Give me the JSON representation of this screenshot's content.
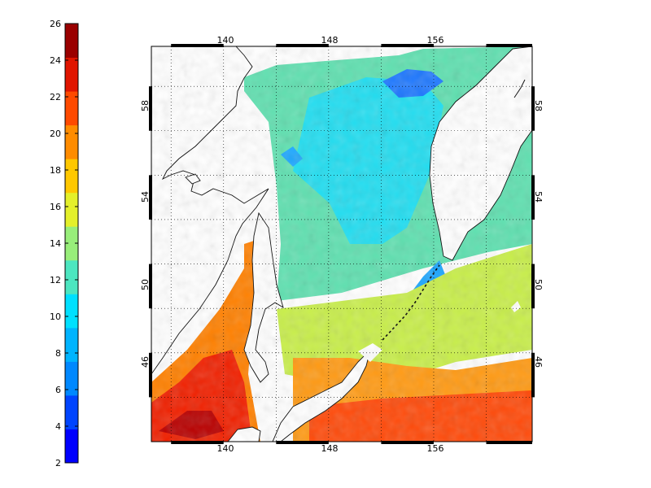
{
  "colorbar": {
    "min": 2,
    "max": 26,
    "step": 2,
    "tick_labels": [
      "2",
      "4",
      "6",
      "8",
      "10",
      "12",
      "14",
      "16",
      "18",
      "20",
      "22",
      "24",
      "26"
    ],
    "colors": [
      "#0000ff",
      "#0044ff",
      "#0088ff",
      "#00b4ff",
      "#00e0ff",
      "#4ce6c0",
      "#98ee7a",
      "#e4f02a",
      "#ffc800",
      "#ff8c00",
      "#ff4a00",
      "#e01500",
      "#9a0000"
    ]
  },
  "map": {
    "lon_ticks": [
      "140",
      "148",
      "156"
    ],
    "lat_ticks": [
      "46",
      "50",
      "54",
      "58"
    ],
    "lon_range": [
      134.5,
      163.5
    ],
    "lat_range": [
      42.0,
      59.8
    ],
    "grid": true,
    "grid_style": "dotted"
  }
}
